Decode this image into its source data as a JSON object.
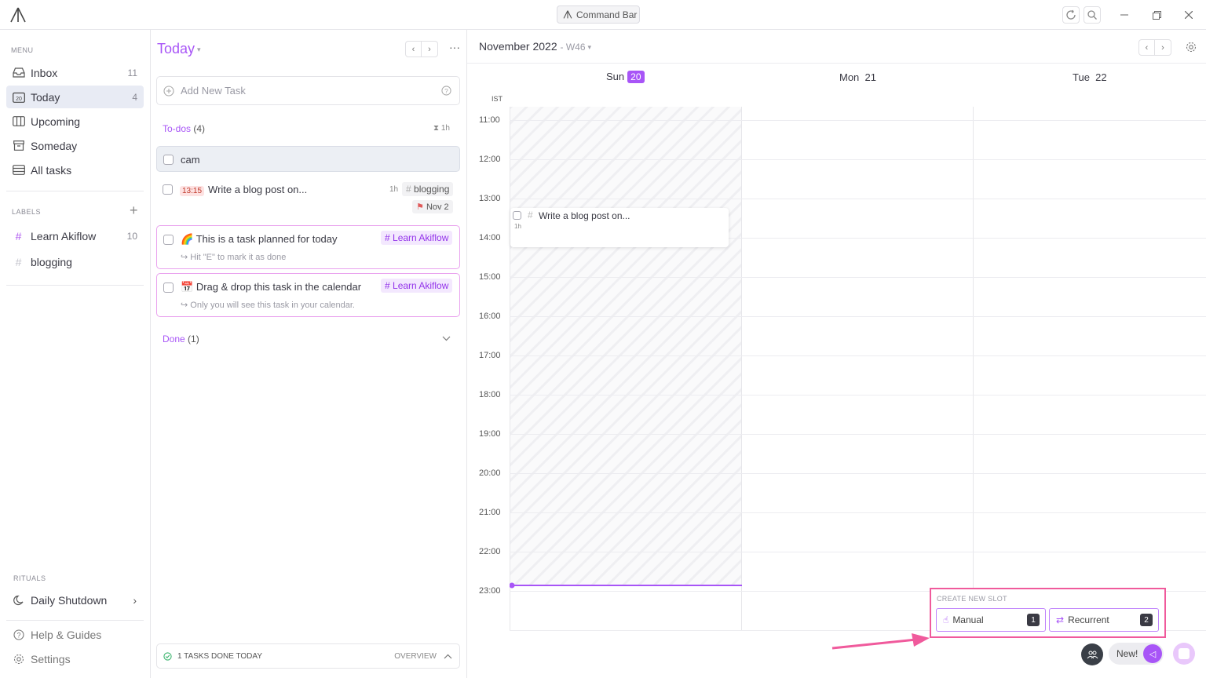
{
  "titlebar": {
    "command_bar_label": "Command Bar"
  },
  "sidebar": {
    "menu_label": "MENU",
    "items": [
      {
        "label": "Inbox",
        "count": "11",
        "icon": "inbox-icon"
      },
      {
        "label": "Today",
        "count": "4",
        "icon": "calendar-20-icon"
      },
      {
        "label": "Upcoming",
        "count": "",
        "icon": "columns-icon"
      },
      {
        "label": "Someday",
        "count": "",
        "icon": "archive-icon"
      },
      {
        "label": "All tasks",
        "count": "",
        "icon": "stack-icon"
      }
    ],
    "labels_label": "LABELS",
    "labels": [
      {
        "label": "Learn Akiflow",
        "count": "10"
      },
      {
        "label": "blogging",
        "count": ""
      }
    ],
    "rituals_label": "RITUALS",
    "ritual_item": "Daily Shutdown",
    "help_label": "Help & Guides",
    "settings_label": "Settings"
  },
  "tasks": {
    "title": "Today",
    "add_placeholder": "Add New Task",
    "todos_label": "To-dos",
    "todos_count": "(4)",
    "todos_duration": "1h",
    "items": [
      {
        "title": "cam"
      },
      {
        "time": "13:15",
        "title": "Write a blog post on...",
        "duration": "1h",
        "tag": "blogging",
        "due": "Nov 2"
      },
      {
        "emoji": "🌈",
        "title": "This is a task planned for today",
        "tag": "Learn Akiflow",
        "sub": "Hit \"E\" to mark it as done"
      },
      {
        "emoji": "📅",
        "title": "Drag & drop this task in the calendar",
        "tag": "Learn Akiflow",
        "sub": "Only you will see this task in your calendar."
      }
    ],
    "done_label": "Done",
    "done_count": "(1)",
    "footer_label": "1 TASKS DONE TODAY",
    "overview_label": "OVERVIEW"
  },
  "calendar": {
    "month": "November 2022",
    "week": "- W46",
    "timezone": "IST",
    "days": [
      {
        "name": "Sun",
        "date": "20"
      },
      {
        "name": "Mon",
        "date": "21"
      },
      {
        "name": "Tue",
        "date": "22"
      }
    ],
    "hours": [
      "11:00",
      "12:00",
      "13:00",
      "14:00",
      "15:00",
      "16:00",
      "17:00",
      "18:00",
      "19:00",
      "20:00",
      "21:00",
      "22:00",
      "23:00"
    ],
    "event": {
      "title": "Write a blog post on...",
      "duration": "1h"
    },
    "slot_panel": {
      "label": "CREATE NEW SLOT",
      "manual_label": "Manual",
      "manual_key": "1",
      "recurrent_label": "Recurrent",
      "recurrent_key": "2"
    },
    "new_label": "New!"
  },
  "colors": {
    "accent": "#a855f7",
    "highlight": "#f05a9c"
  }
}
